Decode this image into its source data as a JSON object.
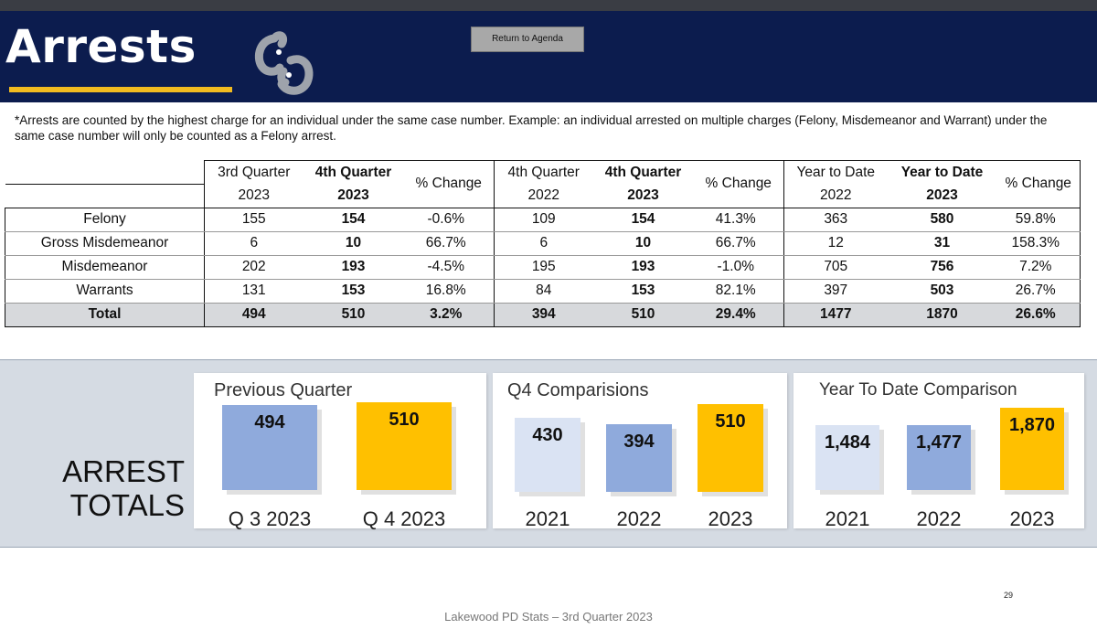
{
  "header": {
    "title": "Arrests",
    "agenda_button": "Return to Agenda"
  },
  "note": "*Arrests are counted by the highest charge for an individual under the same case number. Example: an individual arrested on multiple charges (Felony, Misdemeanor and Warrant) under the same case number will only be counted as a Felony arrest.",
  "table": {
    "headers": {
      "g1a_top": "3rd Quarter",
      "g1a_bot": "2023",
      "g1b_top": "4th Quarter",
      "g1b_bot": "2023",
      "g1c": "% Change",
      "g2a_top": "4th Quarter",
      "g2a_bot": "2022",
      "g2b_top": "4th Quarter",
      "g2b_bot": "2023",
      "g2c": "% Change",
      "g3a_top": "Year to Date",
      "g3a_bot": "2022",
      "g3b_top": "Year to Date",
      "g3b_bot": "2023",
      "g3c": "% Change"
    },
    "rows": [
      {
        "label": "Felony",
        "c": [
          "155",
          "154",
          "-0.6%",
          "109",
          "154",
          "41.3%",
          "363",
          "580",
          "59.8%"
        ]
      },
      {
        "label": "Gross Misdemeanor",
        "c": [
          "6",
          "10",
          "66.7%",
          "6",
          "10",
          "66.7%",
          "12",
          "31",
          "158.3%"
        ]
      },
      {
        "label": "Misdemeanor",
        "c": [
          "202",
          "193",
          "-4.5%",
          "195",
          "193",
          "-1.0%",
          "705",
          "756",
          "7.2%"
        ]
      },
      {
        "label": "Warrants",
        "c": [
          "131",
          "153",
          "16.8%",
          "84",
          "153",
          "82.1%",
          "397",
          "503",
          "26.7%"
        ]
      },
      {
        "label": "Total",
        "c": [
          "494",
          "510",
          "3.2%",
          "394",
          "510",
          "29.4%",
          "1477",
          "1870",
          "26.6%"
        ]
      }
    ]
  },
  "totals_label_line1": "ARREST",
  "totals_label_line2": "TOTALS",
  "colors": {
    "navy": "#0c1c4e",
    "gold": "#f2bb1f",
    "bar_blue": "#8faadc",
    "bar_light": "#dae3f3",
    "bar_gold": "#ffc000"
  },
  "chart_data": [
    {
      "type": "bar",
      "title": "Previous Quarter",
      "categories": [
        "Q 3 2023",
        "Q 4 2023"
      ],
      "values": [
        494,
        510
      ],
      "value_labels": [
        "494",
        "510"
      ]
    },
    {
      "type": "bar",
      "title": "Q4 Comparisions",
      "categories": [
        "2021",
        "2022",
        "2023"
      ],
      "values": [
        430,
        394,
        510
      ],
      "value_labels": [
        "430",
        "394",
        "510"
      ]
    },
    {
      "type": "bar",
      "title": "Year To Date Comparison",
      "categories": [
        "2021",
        "2022",
        "2023"
      ],
      "values": [
        1484,
        1477,
        1870
      ],
      "value_labels": [
        "1,484",
        "1,477",
        "1,870"
      ]
    }
  ],
  "footer": "Lakewood PD Stats – 3rd Quarter 2023",
  "page_number": "29"
}
